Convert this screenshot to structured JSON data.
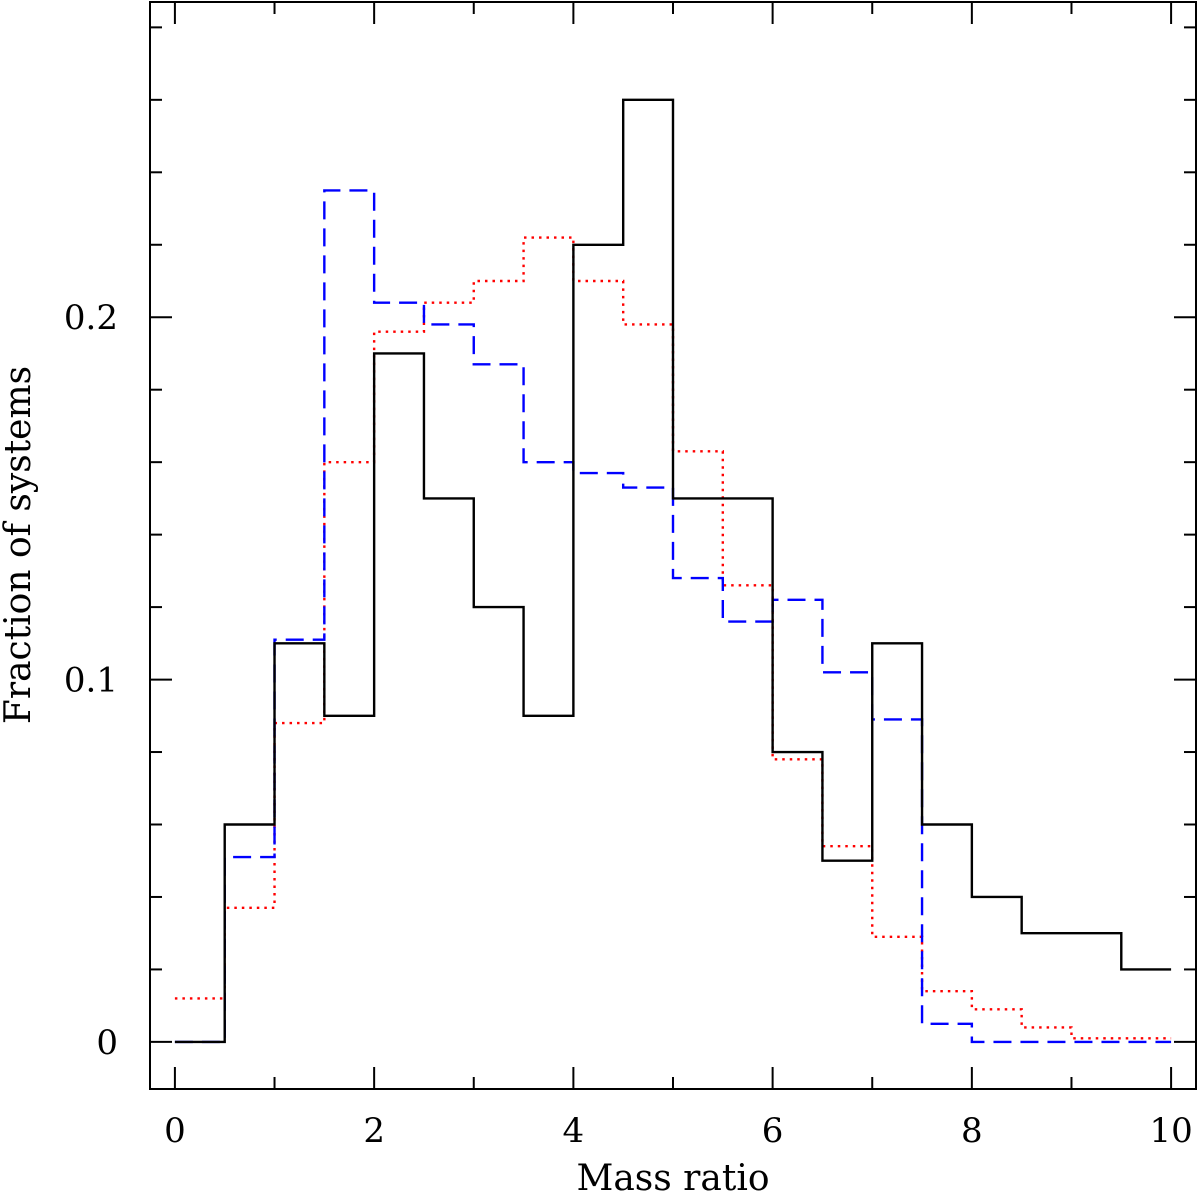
{
  "chart_data": {
    "type": "histogram-step",
    "title": "",
    "xlabel": "Mass ratio",
    "ylabel": "Fraction of systems",
    "xlim": [
      -0.25,
      10.25
    ],
    "ylim": [
      -0.013,
      0.287
    ],
    "xticks": [
      0,
      2,
      4,
      6,
      8,
      10
    ],
    "xtick_labels": [
      "0",
      "2",
      "4",
      "6",
      "8",
      "10"
    ],
    "yticks": [
      0,
      0.1,
      0.2
    ],
    "ytick_labels": [
      "0",
      "0.1",
      "0.2"
    ],
    "bin_edges": [
      0,
      0.5,
      1,
      1.5,
      2,
      2.5,
      3,
      3.5,
      4,
      4.5,
      5,
      5.5,
      6,
      6.5,
      7,
      7.5,
      8,
      8.5,
      9,
      9.5,
      10
    ],
    "series": [
      {
        "name": "solid",
        "color": "#000000",
        "style": "solid",
        "values": [
          0.0,
          0.06,
          0.11,
          0.09,
          0.19,
          0.15,
          0.12,
          0.09,
          0.22,
          0.26,
          0.15,
          0.15,
          0.08,
          0.05,
          0.11,
          0.06,
          0.04,
          0.03,
          0.03,
          0.02
        ]
      },
      {
        "name": "dashed",
        "color": "#0000ff",
        "style": "dashed",
        "values": [
          0.0,
          0.051,
          0.111,
          0.235,
          0.204,
          0.198,
          0.187,
          0.16,
          0.157,
          0.153,
          0.128,
          0.116,
          0.122,
          0.102,
          0.089,
          0.005,
          0.0,
          0.0,
          0.0,
          0.0
        ]
      },
      {
        "name": "dotted",
        "color": "#ff0000",
        "style": "dotted",
        "values": [
          0.012,
          0.037,
          0.088,
          0.16,
          0.196,
          0.204,
          0.21,
          0.222,
          0.21,
          0.198,
          0.163,
          0.126,
          0.078,
          0.054,
          0.029,
          0.014,
          0.009,
          0.004,
          0.001,
          0.001
        ]
      }
    ]
  }
}
